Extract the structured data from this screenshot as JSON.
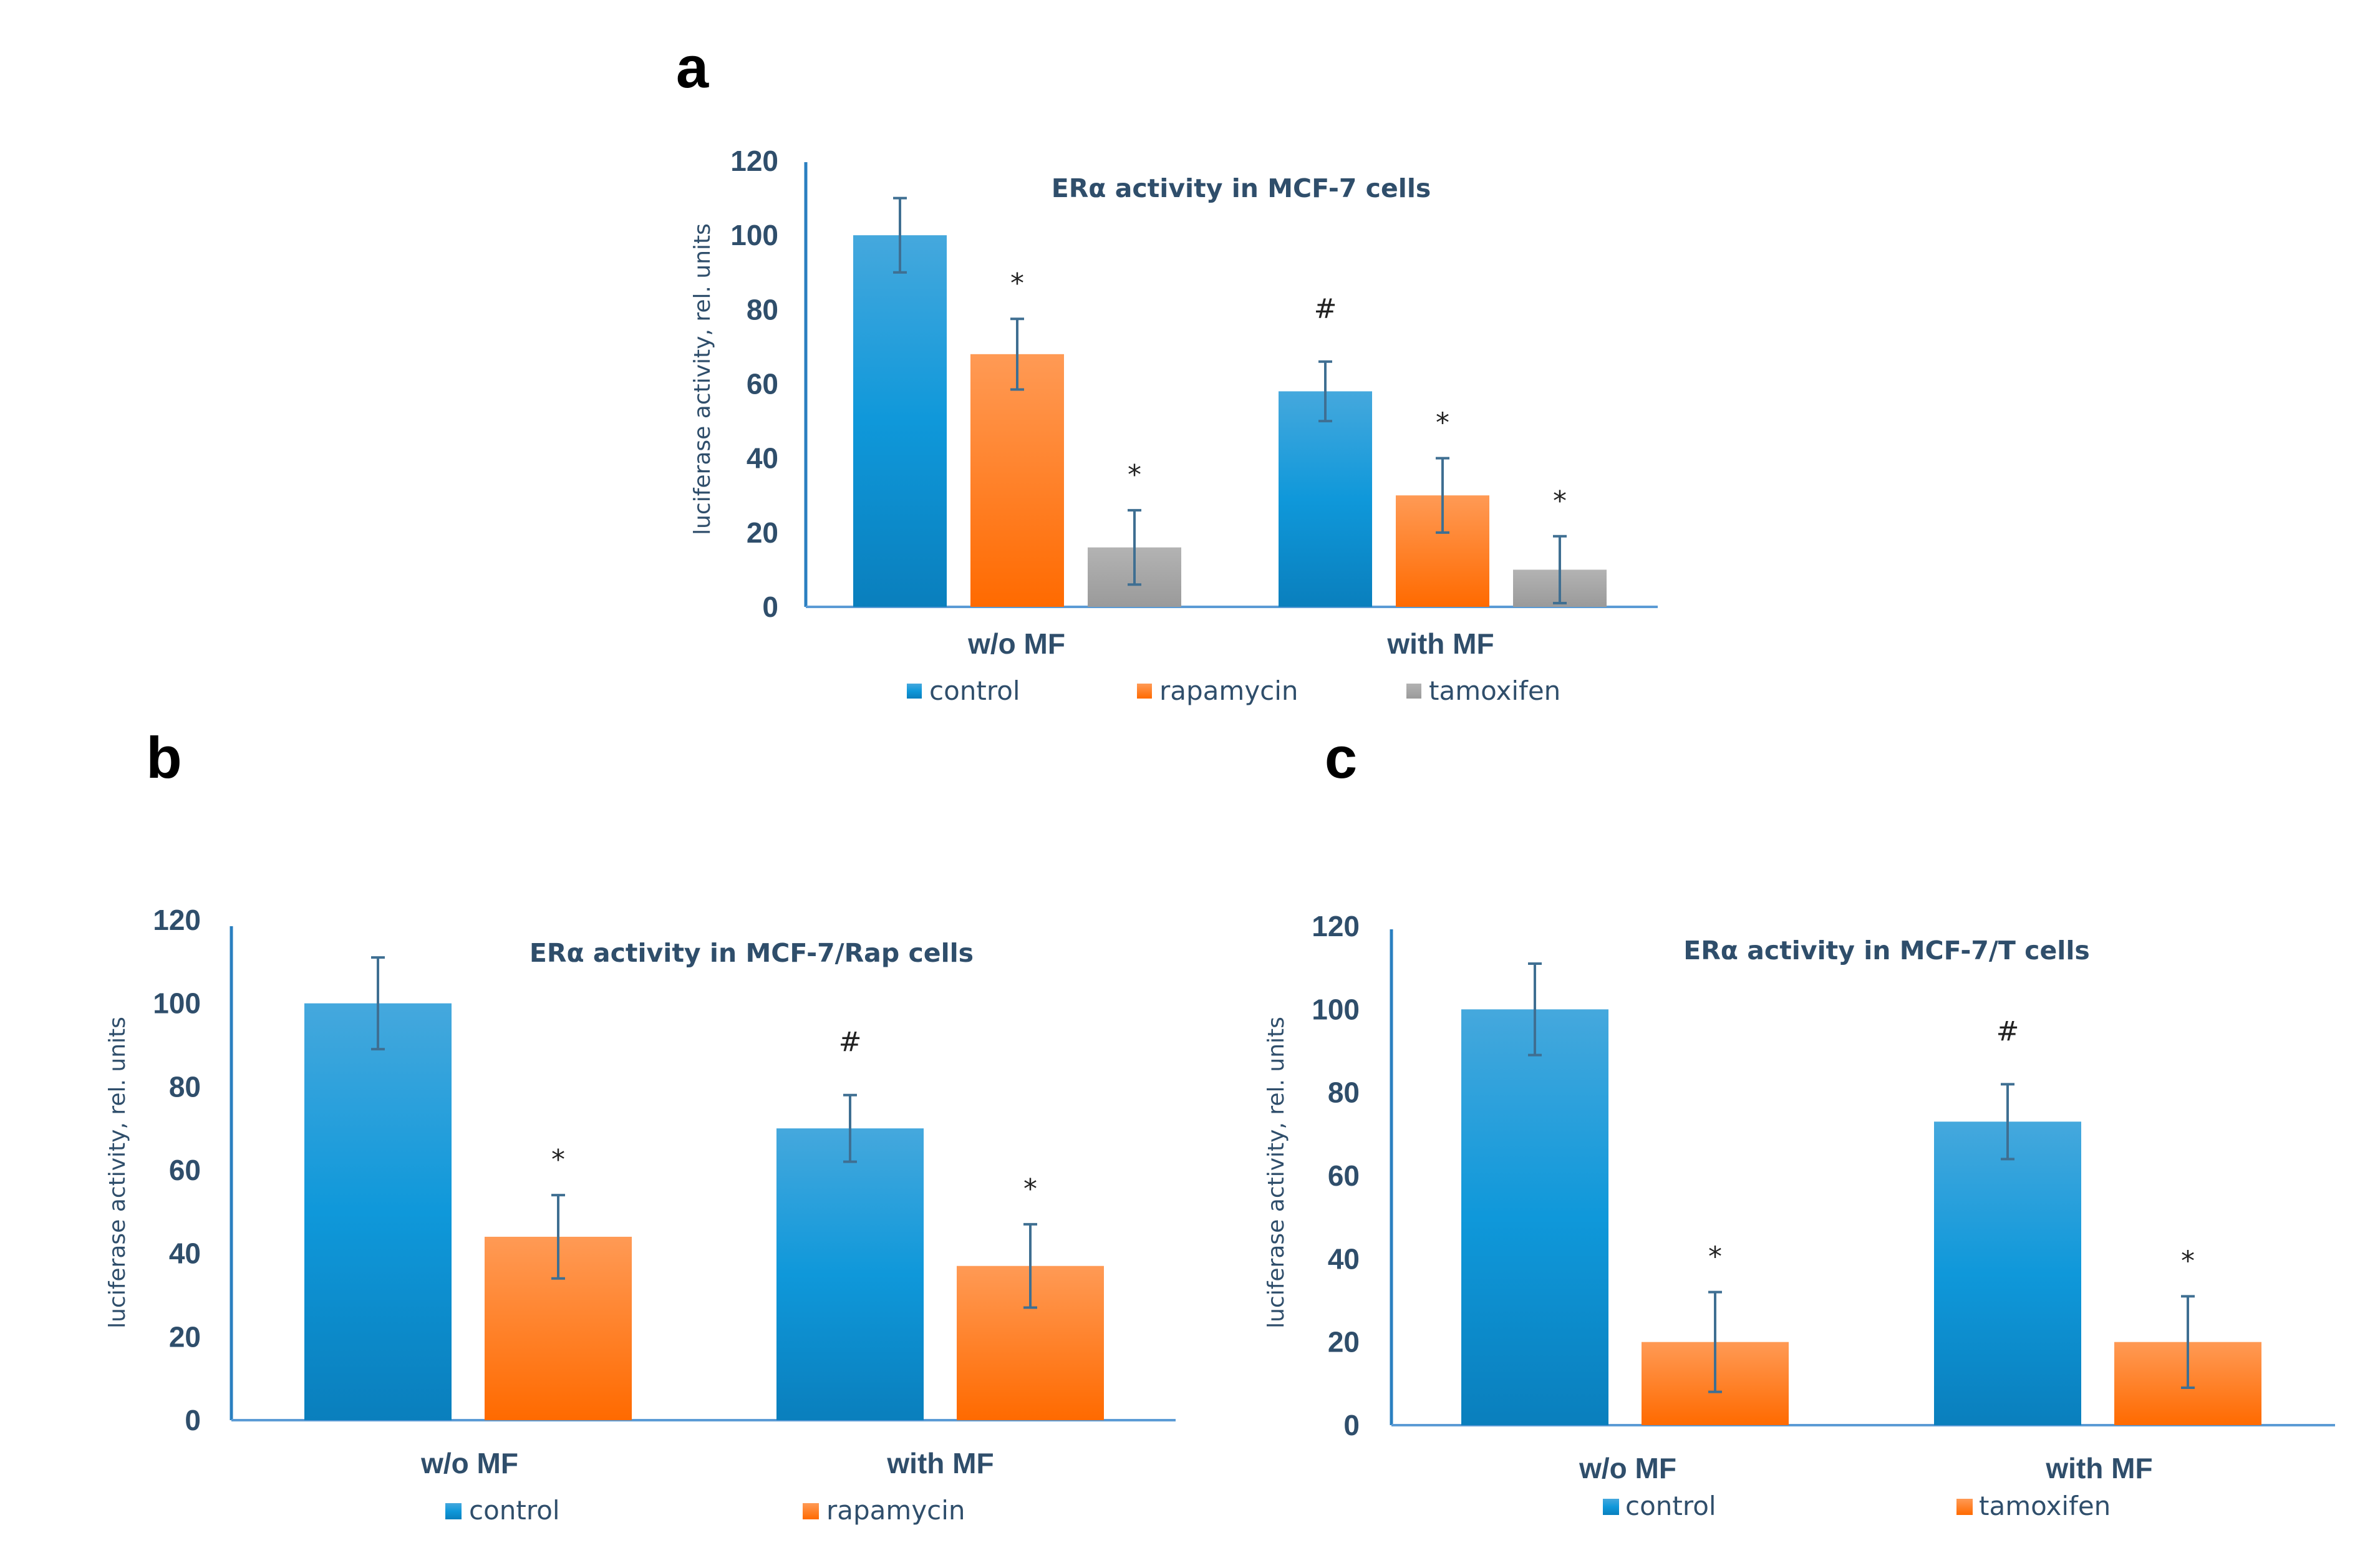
{
  "colors": {
    "control": "#1a9ad6",
    "rapamycin": "#ff7a1f",
    "tamoxifen": "#a6a6a6",
    "axis": "#5b9bd5",
    "err": "#3f6f92"
  },
  "chart_data": [
    {
      "id": "a",
      "panel_label": "a",
      "type": "bar",
      "title": "ERα activity in MCF-7 cells",
      "ylabel": "luciferase activity, rel. units",
      "xlabel": "",
      "ylim": [
        0,
        120
      ],
      "yticks": [
        "0",
        "20",
        "40",
        "60",
        "80",
        "100",
        "120"
      ],
      "categories": [
        "w/o MF",
        "with MF"
      ],
      "series": [
        {
          "name": "control",
          "color": "#1a9ad6",
          "values": [
            100,
            58
          ],
          "errors": [
            10,
            8
          ],
          "marks": [
            "",
            "#"
          ]
        },
        {
          "name": "rapamycin",
          "color": "#ff7a1f",
          "values": [
            68,
            30
          ],
          "errors": [
            9.5,
            10
          ],
          "marks": [
            "*",
            "*"
          ]
        },
        {
          "name": "tamoxifen",
          "color": "#a6a6a6",
          "values": [
            16,
            10
          ],
          "errors": [
            10,
            9
          ],
          "marks": [
            "*",
            "*"
          ]
        }
      ]
    },
    {
      "id": "b",
      "panel_label": "b",
      "type": "bar",
      "title": "ERα activity in MCF-7/Rap cells",
      "ylabel": "luciferase activity, rel. units",
      "xlabel": "",
      "ylim": [
        0,
        120
      ],
      "yticks": [
        "0",
        "20",
        "40",
        "60",
        "80",
        "100",
        "120"
      ],
      "categories": [
        "w/o MF",
        "with MF"
      ],
      "series": [
        {
          "name": "control",
          "color": "#1a9ad6",
          "values": [
            100,
            70
          ],
          "errors": [
            11,
            8
          ],
          "marks": [
            "",
            "#"
          ]
        },
        {
          "name": "rapamycin",
          "color": "#ff7a1f",
          "values": [
            44,
            37
          ],
          "errors": [
            10,
            10
          ],
          "marks": [
            "*",
            "*"
          ]
        }
      ]
    },
    {
      "id": "c",
      "panel_label": "c",
      "type": "bar",
      "title": "ERα activity in MCF-7/T cells",
      "ylabel": "luciferase activity, rel. units",
      "xlabel": "",
      "ylim": [
        0,
        120
      ],
      "yticks": [
        "0",
        "20",
        "40",
        "60",
        "80",
        "100",
        "120"
      ],
      "categories": [
        "w/o MF",
        "with MF"
      ],
      "series": [
        {
          "name": "control",
          "color": "#1a9ad6",
          "values": [
            100,
            73
          ],
          "errors": [
            11,
            9
          ],
          "marks": [
            "",
            "#"
          ]
        },
        {
          "name": "tamoxifen",
          "color": "#ff7a1f",
          "values": [
            20,
            20
          ],
          "errors": [
            12,
            11
          ],
          "marks": [
            "*",
            "*"
          ]
        }
      ]
    }
  ]
}
